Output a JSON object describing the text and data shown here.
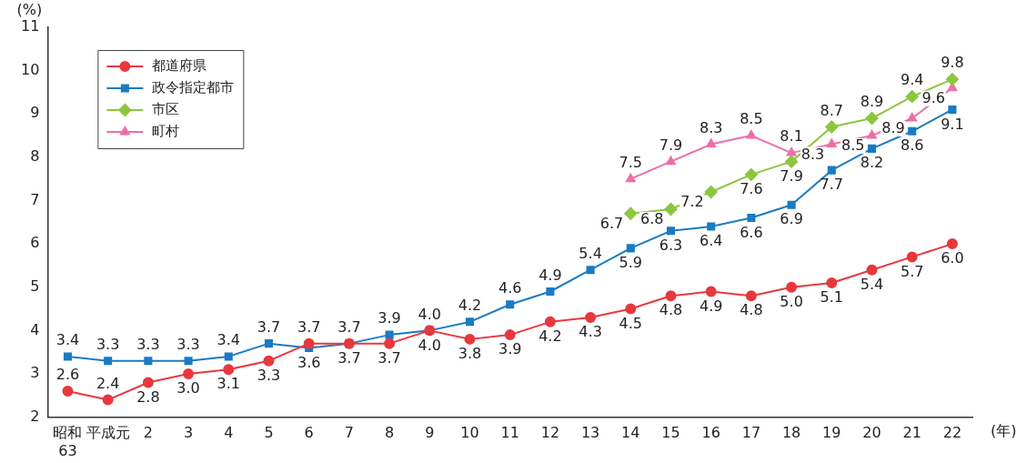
{
  "chart_data": {
    "type": "line",
    "xlabel": "(年)",
    "ylabel": "(%)",
    "categories": [
      "昭和63",
      "平成元",
      "2",
      "3",
      "4",
      "5",
      "6",
      "7",
      "8",
      "9",
      "10",
      "11",
      "12",
      "13",
      "14",
      "15",
      "16",
      "17",
      "18",
      "19",
      "20",
      "21",
      "22"
    ],
    "series": [
      {
        "name": "都道府県",
        "color": "#e8383d",
        "marker": "circle",
        "values": [
          2.6,
          2.4,
          2.8,
          3.0,
          3.1,
          3.3,
          3.7,
          3.7,
          3.7,
          4.0,
          3.8,
          3.9,
          4.2,
          4.3,
          4.5,
          4.8,
          4.9,
          4.8,
          5.0,
          5.1,
          5.4,
          5.7,
          6.0
        ],
        "value_labels": [
          "2.6",
          "2.4",
          "2.8",
          "3.0",
          "3.1",
          "3.3",
          "3.7",
          "3.7",
          "3.7",
          "4.0",
          "3.8",
          "3.9",
          "4.2",
          "4.3",
          "4.5",
          "4.8",
          "4.9",
          "4.8",
          "5.0",
          "5.1",
          "5.4",
          "5.7",
          "6.0"
        ]
      },
      {
        "name": "政令指定都市",
        "color": "#1a7bc4",
        "marker": "square",
        "values": [
          3.4,
          3.3,
          3.3,
          3.3,
          3.4,
          3.7,
          3.6,
          3.7,
          3.9,
          4.0,
          4.2,
          4.6,
          4.9,
          5.4,
          5.9,
          6.3,
          6.4,
          6.6,
          6.9,
          7.7,
          8.2,
          8.6,
          9.1
        ],
        "value_labels": [
          "3.4",
          "3.3",
          "3.3",
          "3.3",
          "3.4",
          "3.7",
          "3.6",
          "3.7",
          "3.9",
          "4.0",
          "4.2",
          "4.6",
          "4.9",
          "5.4",
          "5.9",
          "6.3",
          "6.4",
          "6.6",
          "6.9",
          "7.7",
          "8.2",
          "8.6",
          "9.1"
        ]
      },
      {
        "name": "市区",
        "color": "#8cc63f",
        "marker": "diamond",
        "values": [
          null,
          null,
          null,
          null,
          null,
          null,
          null,
          null,
          null,
          null,
          null,
          null,
          null,
          null,
          6.7,
          6.8,
          7.2,
          7.6,
          7.9,
          8.7,
          8.9,
          9.4,
          9.8
        ],
        "value_labels": [
          null,
          null,
          null,
          null,
          null,
          null,
          null,
          null,
          null,
          null,
          null,
          null,
          null,
          null,
          "6.7",
          "6.8",
          "7.2",
          "7.6",
          "7.9",
          "8.7",
          "8.9",
          "9.4",
          "9.8"
        ]
      },
      {
        "name": "町村",
        "color": "#ec6fa8",
        "marker": "triangle",
        "values": [
          null,
          null,
          null,
          null,
          null,
          null,
          null,
          null,
          null,
          null,
          null,
          null,
          null,
          null,
          7.5,
          7.9,
          8.3,
          8.5,
          8.1,
          8.3,
          8.5,
          8.9,
          9.6
        ],
        "value_labels": [
          null,
          null,
          null,
          null,
          null,
          null,
          null,
          null,
          null,
          null,
          null,
          null,
          null,
          null,
          "7.5",
          "7.9",
          "8.3",
          "8.5",
          "8.1",
          "8.3",
          "8.5",
          "8.9",
          "9.6"
        ]
      }
    ],
    "ylim": [
      2,
      11
    ],
    "yticks": [
      2,
      3,
      4,
      5,
      6,
      7,
      8,
      9,
      10,
      11
    ],
    "grid": false,
    "legend": "top left",
    "line_style": "solid"
  }
}
